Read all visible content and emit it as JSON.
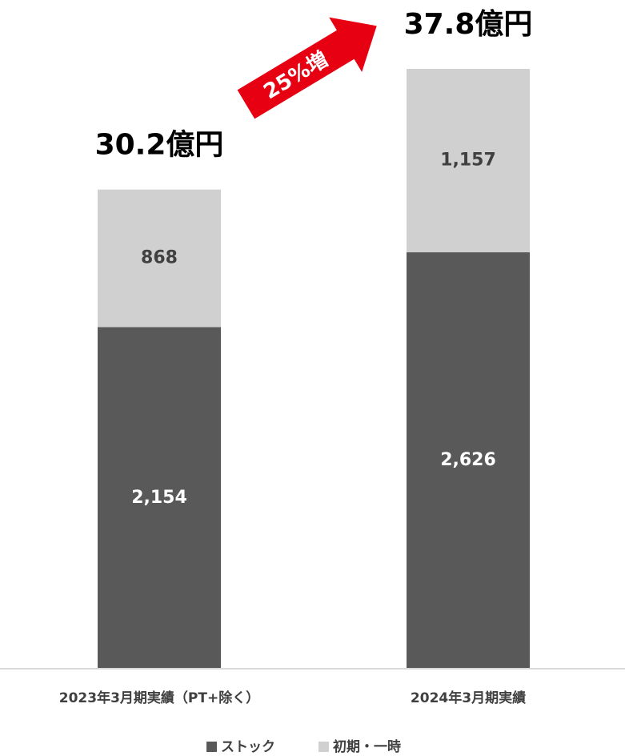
{
  "chart_data": {
    "type": "stacked_bar",
    "categories": [
      "2023年3月期実績（PT+除く）",
      "2024年3月期実績"
    ],
    "series": [
      {
        "name": "ストック",
        "color": "#595959",
        "values": [
          2154,
          2626
        ],
        "value_labels": [
          "2,154",
          "2,626"
        ]
      },
      {
        "name": "初期・一時",
        "color": "#d0d0d0",
        "values": [
          868,
          1157
        ],
        "value_labels": [
          "868",
          "1,157"
        ]
      }
    ],
    "total_labels": [
      "30.2億円",
      "37.8億円"
    ],
    "annotation": "25%増"
  }
}
